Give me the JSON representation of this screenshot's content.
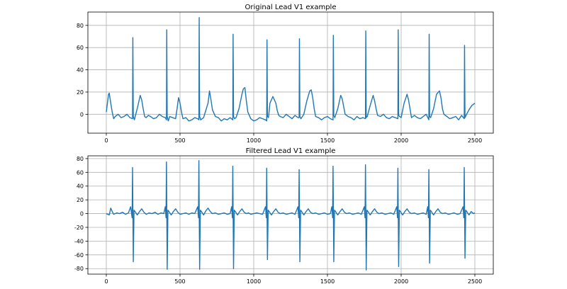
{
  "chart_data": [
    {
      "type": "line",
      "title": "Original Lead V1 example",
      "xlabel": "",
      "ylabel": "",
      "xlim": [
        -125,
        2625
      ],
      "ylim": [
        -17,
        92
      ],
      "xticks": [
        0,
        500,
        1000,
        1500,
        2000,
        2500
      ],
      "yticks": [
        0,
        20,
        40,
        60,
        80
      ],
      "grid": true,
      "series": [
        {
          "color": "#1f77b4",
          "x": [
            0,
            15,
            20,
            30,
            40,
            50,
            60,
            80,
            100,
            120,
            140,
            160,
            178,
            180,
            183,
            190,
            200,
            215,
            230,
            240,
            250,
            260,
            270,
            285,
            300,
            320,
            340,
            360,
            380,
            400,
            408,
            410,
            413,
            420,
            430,
            450,
            470,
            480,
            490,
            500,
            510,
            520,
            540,
            560,
            580,
            600,
            620,
            628,
            630,
            633,
            640,
            660,
            690,
            700,
            710,
            720,
            740,
            760,
            780,
            800,
            820,
            840,
            858,
            860,
            863,
            870,
            880,
            900,
            920,
            930,
            940,
            950,
            960,
            980,
            1000,
            1020,
            1040,
            1060,
            1080,
            1088,
            1090,
            1093,
            1100,
            1110,
            1130,
            1150,
            1160,
            1170,
            1180,
            1200,
            1220,
            1240,
            1260,
            1280,
            1300,
            1308,
            1310,
            1313,
            1320,
            1340,
            1360,
            1380,
            1390,
            1400,
            1410,
            1420,
            1440,
            1460,
            1480,
            1500,
            1520,
            1538,
            1540,
            1543,
            1550,
            1570,
            1590,
            1600,
            1610,
            1620,
            1640,
            1660,
            1680,
            1700,
            1720,
            1740,
            1758,
            1760,
            1763,
            1770,
            1790,
            1810,
            1820,
            1830,
            1840,
            1860,
            1880,
            1900,
            1920,
            1940,
            1960,
            1978,
            1980,
            1983,
            1990,
            2000,
            2020,
            2040,
            2050,
            2060,
            2070,
            2090,
            2110,
            2130,
            2150,
            2170,
            2188,
            2190,
            2193,
            2200,
            2220,
            2240,
            2260,
            2270,
            2280,
            2290,
            2310,
            2330,
            2350,
            2370,
            2390,
            2410,
            2428,
            2430,
            2433,
            2440,
            2460,
            2480,
            2500
          ],
          "y": [
            2,
            18,
            19,
            10,
            2,
            -4,
            -2,
            0,
            -3,
            -2,
            0,
            -3,
            -4,
            69,
            -2,
            -5,
            0,
            8,
            17,
            13,
            5,
            -2,
            -3,
            -1,
            -2,
            -4,
            -3,
            0,
            -2,
            -3,
            -5,
            76,
            -2,
            -6,
            -2,
            -3,
            -4,
            5,
            15,
            10,
            2,
            -4,
            -3,
            -6,
            -5,
            -3,
            -4,
            -5,
            87,
            -2,
            -5,
            -3,
            10,
            21,
            13,
            4,
            -2,
            -3,
            -6,
            -4,
            -5,
            -3,
            -5,
            72,
            -2,
            -4,
            -3,
            5,
            18,
            23,
            24,
            12,
            2,
            -4,
            -6,
            -5,
            -3,
            -4,
            -5,
            -6,
            67,
            -2,
            -3,
            10,
            16,
            10,
            3,
            -1,
            -2,
            -3,
            0,
            -2,
            -4,
            -1,
            -3,
            -3,
            68,
            -2,
            -4,
            0,
            12,
            21,
            22,
            15,
            5,
            -2,
            -3,
            -5,
            -3,
            -2,
            -4,
            -5,
            71,
            -1,
            -3,
            5,
            17,
            14,
            7,
            0,
            -2,
            -3,
            -5,
            -2,
            -4,
            -3,
            -4,
            75,
            -3,
            -2,
            8,
            17,
            12,
            5,
            -1,
            -2,
            0,
            -3,
            -4,
            -2,
            -3,
            -4,
            76,
            -1,
            -2,
            -3,
            10,
            18,
            13,
            5,
            -3,
            -1,
            -3,
            -4,
            -2,
            0,
            -5,
            72,
            -2,
            -3,
            5,
            18,
            21,
            15,
            5,
            0,
            -2,
            -4,
            -3,
            -2,
            -5,
            -1,
            -4,
            62,
            -3,
            -1,
            4,
            8,
            10
          ]
        }
      ]
    },
    {
      "type": "line",
      "title": "Filtered Lead V1 example",
      "xlabel": "",
      "ylabel": "",
      "xlim": [
        -125,
        2625
      ],
      "ylim": [
        -88,
        84
      ],
      "xticks": [
        0,
        500,
        1000,
        1500,
        2000,
        2500
      ],
      "yticks": [
        -80,
        -60,
        -40,
        -20,
        0,
        20,
        40,
        60,
        80
      ],
      "grid": true,
      "series": [
        {
          "color": "#1f77b4",
          "x": [
            0,
            20,
            30,
            40,
            50,
            70,
            90,
            110,
            130,
            150,
            165,
            175,
            178,
            183,
            188,
            195,
            210,
            225,
            240,
            255,
            270,
            290,
            310,
            330,
            350,
            370,
            390,
            400,
            405,
            408,
            413,
            418,
            425,
            440,
            455,
            470,
            485,
            500,
            520,
            540,
            560,
            580,
            600,
            620,
            625,
            628,
            633,
            638,
            645,
            660,
            675,
            690,
            705,
            720,
            740,
            760,
            780,
            800,
            820,
            840,
            850,
            855,
            858,
            863,
            868,
            875,
            890,
            905,
            920,
            935,
            950,
            965,
            980,
            1000,
            1020,
            1040,
            1060,
            1080,
            1085,
            1088,
            1093,
            1098,
            1105,
            1120,
            1135,
            1150,
            1165,
            1180,
            1200,
            1220,
            1240,
            1260,
            1280,
            1300,
            1305,
            1308,
            1313,
            1318,
            1325,
            1340,
            1355,
            1370,
            1385,
            1400,
            1420,
            1440,
            1460,
            1480,
            1500,
            1520,
            1530,
            1535,
            1538,
            1543,
            1548,
            1555,
            1570,
            1585,
            1600,
            1615,
            1630,
            1650,
            1670,
            1690,
            1710,
            1730,
            1750,
            1755,
            1758,
            1763,
            1768,
            1775,
            1790,
            1805,
            1820,
            1835,
            1850,
            1870,
            1890,
            1910,
            1930,
            1950,
            1970,
            1975,
            1978,
            1983,
            1988,
            1995,
            2010,
            2025,
            2040,
            2055,
            2070,
            2090,
            2110,
            2130,
            2150,
            2170,
            2180,
            2185,
            2188,
            2193,
            2198,
            2205,
            2220,
            2235,
            2250,
            2265,
            2280,
            2300,
            2320,
            2340,
            2360,
            2380,
            2400,
            2420,
            2425,
            2428,
            2433,
            2438,
            2445,
            2460,
            2475,
            2490,
            2500
          ],
          "y": [
            0,
            -2,
            8,
            3,
            -1,
            1,
            0,
            2,
            -1,
            1,
            10,
            -6,
            67,
            -70,
            5,
            3,
            -2,
            3,
            7,
            2,
            -1,
            1,
            0,
            2,
            -1,
            1,
            0,
            10,
            -6,
            75,
            -81,
            5,
            3,
            -2,
            3,
            7,
            2,
            -1,
            0,
            1,
            -1,
            1,
            0,
            10,
            -6,
            77,
            -81,
            5,
            3,
            -2,
            4,
            8,
            3,
            0,
            1,
            -1,
            0,
            1,
            -1,
            0,
            10,
            -6,
            69,
            -80,
            5,
            3,
            -2,
            3,
            7,
            2,
            0,
            1,
            -1,
            0,
            1,
            0,
            -1,
            10,
            -6,
            66,
            -67,
            5,
            3,
            -2,
            3,
            7,
            2,
            0,
            1,
            -1,
            0,
            1,
            -1,
            10,
            -6,
            64,
            -70,
            5,
            3,
            -2,
            3,
            7,
            2,
            0,
            1,
            -1,
            0,
            1,
            -1,
            0,
            10,
            -6,
            69,
            -70,
            5,
            3,
            -2,
            3,
            7,
            2,
            0,
            1,
            -1,
            0,
            1,
            -1,
            10,
            -6,
            71,
            -82,
            5,
            3,
            -2,
            3,
            7,
            2,
            0,
            1,
            -1,
            0,
            1,
            -1,
            10,
            -6,
            66,
            -77,
            5,
            3,
            -2,
            3,
            7,
            2,
            0,
            1,
            -1,
            0,
            1,
            -1,
            10,
            -6,
            64,
            -72,
            5,
            3,
            -2,
            3,
            7,
            2,
            0,
            1,
            -1,
            0,
            1,
            -1,
            0,
            10,
            -6,
            67,
            -65,
            5,
            3,
            -2,
            3,
            0,
            1
          ]
        }
      ]
    }
  ]
}
